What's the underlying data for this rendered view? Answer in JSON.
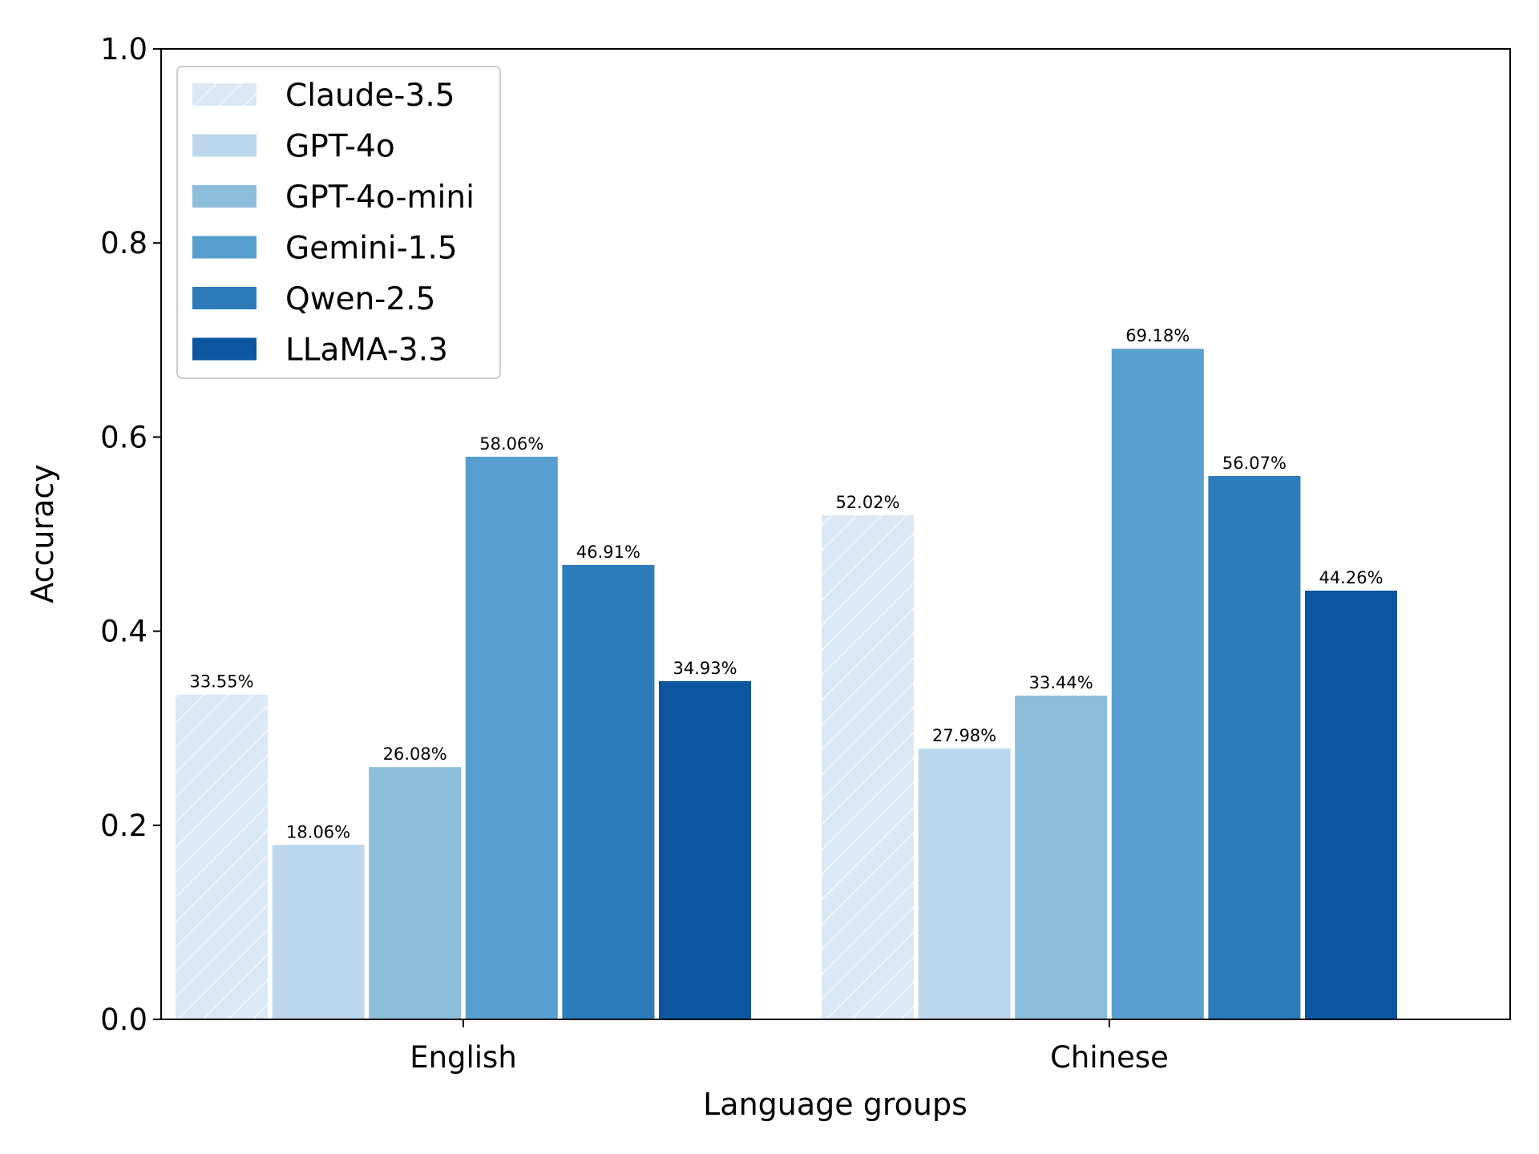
{
  "chart_data": {
    "type": "bar",
    "title": "",
    "xlabel": "Language groups",
    "ylabel": "Accuracy",
    "ylim": [
      0,
      1
    ],
    "yticks": [
      "0.0",
      "0.2",
      "0.4",
      "0.6",
      "0.8",
      "1.0"
    ],
    "categories": [
      "English",
      "Chinese"
    ],
    "series": [
      {
        "name": "Claude-3.5",
        "values": [
          0.3355,
          0.5202
        ],
        "labels": [
          "33.55%",
          "52.02%"
        ],
        "color": "#dbe8f5",
        "hatch": true
      },
      {
        "name": "GPT-4o",
        "values": [
          0.1806,
          0.2798
        ],
        "labels": [
          "18.06%",
          "27.98%"
        ],
        "color": "#bcd7eb",
        "hatch": false
      },
      {
        "name": "GPT-4o-mini",
        "values": [
          0.2608,
          0.3344
        ],
        "labels": [
          "26.08%",
          "33.44%"
        ],
        "color": "#8cbedc",
        "hatch": false
      },
      {
        "name": "Gemini-1.5",
        "values": [
          0.5806,
          0.6918
        ],
        "labels": [
          "58.06%",
          "69.18%"
        ],
        "color": "#569fce",
        "hatch": false
      },
      {
        "name": "Qwen-2.5",
        "values": [
          0.4691,
          0.5607
        ],
        "labels": [
          "46.91%",
          "56.07%"
        ],
        "color": "#2c7bba",
        "hatch": false
      },
      {
        "name": "LLaMA-3.3",
        "values": [
          0.3493,
          0.4426
        ],
        "labels": [
          "34.93%",
          "44.26%"
        ],
        "color": "#0c559f",
        "hatch": false
      }
    ],
    "legend_position": "top-left",
    "grid": false
  }
}
